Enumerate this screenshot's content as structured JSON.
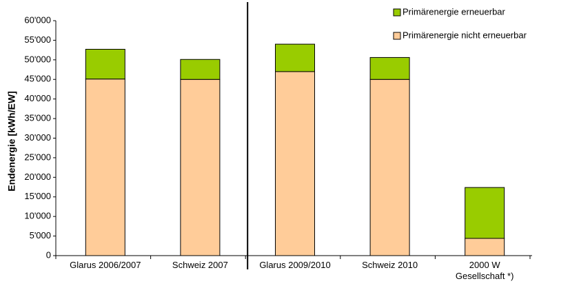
{
  "chart_data": {
    "type": "stacked_bar",
    "categories": [
      "Glarus 2006/2007",
      "Schweiz 2007",
      "Glarus 2009/2010",
      "Schweiz 2010",
      "2000 W Gesellschaft *)"
    ],
    "series": [
      {
        "name": "Primärenergie nicht erneuerbar",
        "color": "#ffcc99",
        "values": [
          45100,
          45000,
          47000,
          45000,
          4400
        ]
      },
      {
        "name": "Primärenergie erneuerbar",
        "color": "#99cc00",
        "values": [
          7600,
          5100,
          7000,
          5600,
          13000
        ]
      }
    ],
    "y_label": "Endenergie [kWh/EW]",
    "ylim": [
      0,
      60000
    ],
    "yticks": [
      0,
      {
        "value": 5000,
        "label": "5'000"
      },
      {
        "value": 10000,
        "label": "10'000"
      },
      {
        "value": 15000,
        "label": "15'000"
      },
      {
        "value": 20000,
        "label": "20'000"
      },
      {
        "value": 25000,
        "label": "25'000"
      },
      {
        "value": 30000,
        "label": "30'000"
      },
      {
        "value": 35000,
        "label": "35'000"
      },
      {
        "value": 40000,
        "label": "40'000"
      },
      {
        "value": 45000,
        "label": "45'000"
      },
      {
        "value": 50000,
        "label": "50'000"
      },
      {
        "value": 55000,
        "label": "55'000"
      },
      {
        "value": 60000,
        "label": "60'000"
      }
    ],
    "legend": "top-right",
    "grid": false
  }
}
